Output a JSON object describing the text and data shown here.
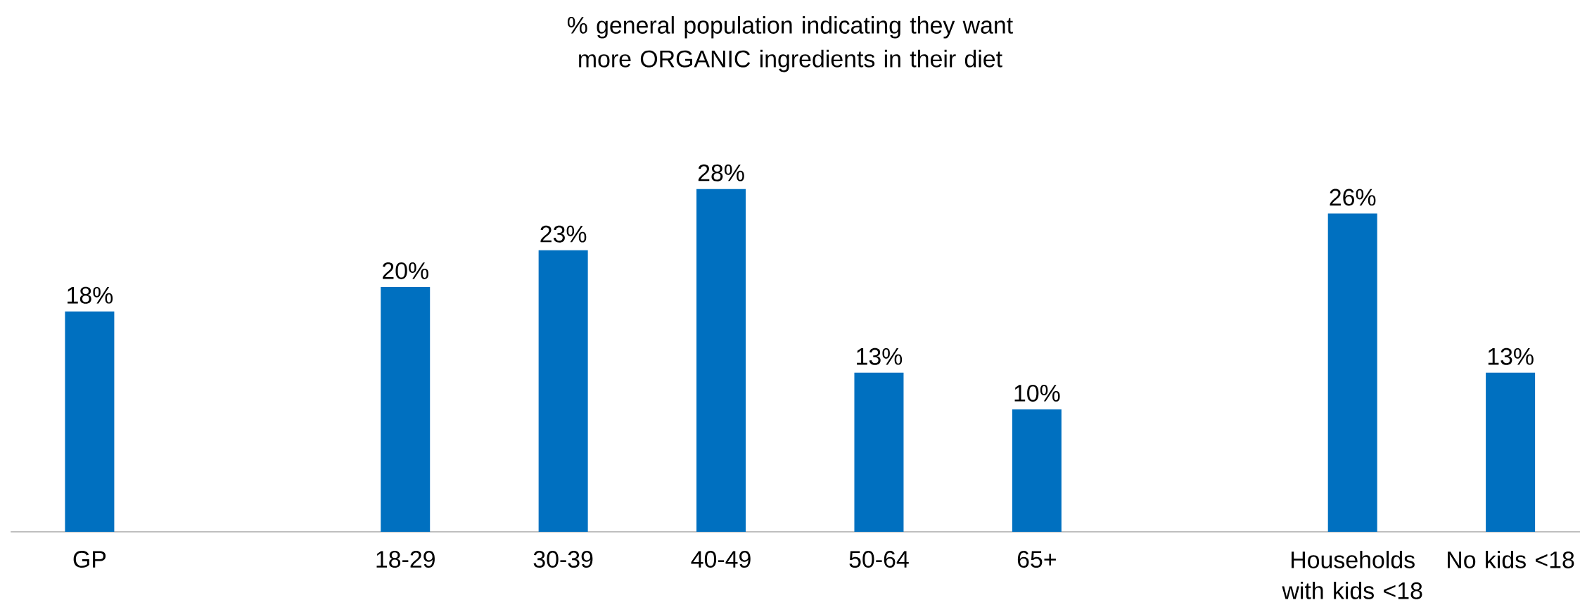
{
  "chart_data": {
    "type": "bar",
    "title": "% general population indicating they want more ORGANIC ingredients in their diet",
    "categories": [
      "GP",
      null,
      "18-29",
      "30-39",
      "40-49",
      "50-64",
      "65+",
      null,
      "Households with kids <18",
      "No kids <18"
    ],
    "values": [
      18,
      null,
      20,
      23,
      28,
      13,
      10,
      null,
      26,
      13
    ],
    "color": "#0070c0",
    "value_labels": [
      "18%",
      null,
      "20%",
      "23%",
      "28%",
      "13%",
      "10%",
      null,
      "26%",
      "13%"
    ]
  }
}
